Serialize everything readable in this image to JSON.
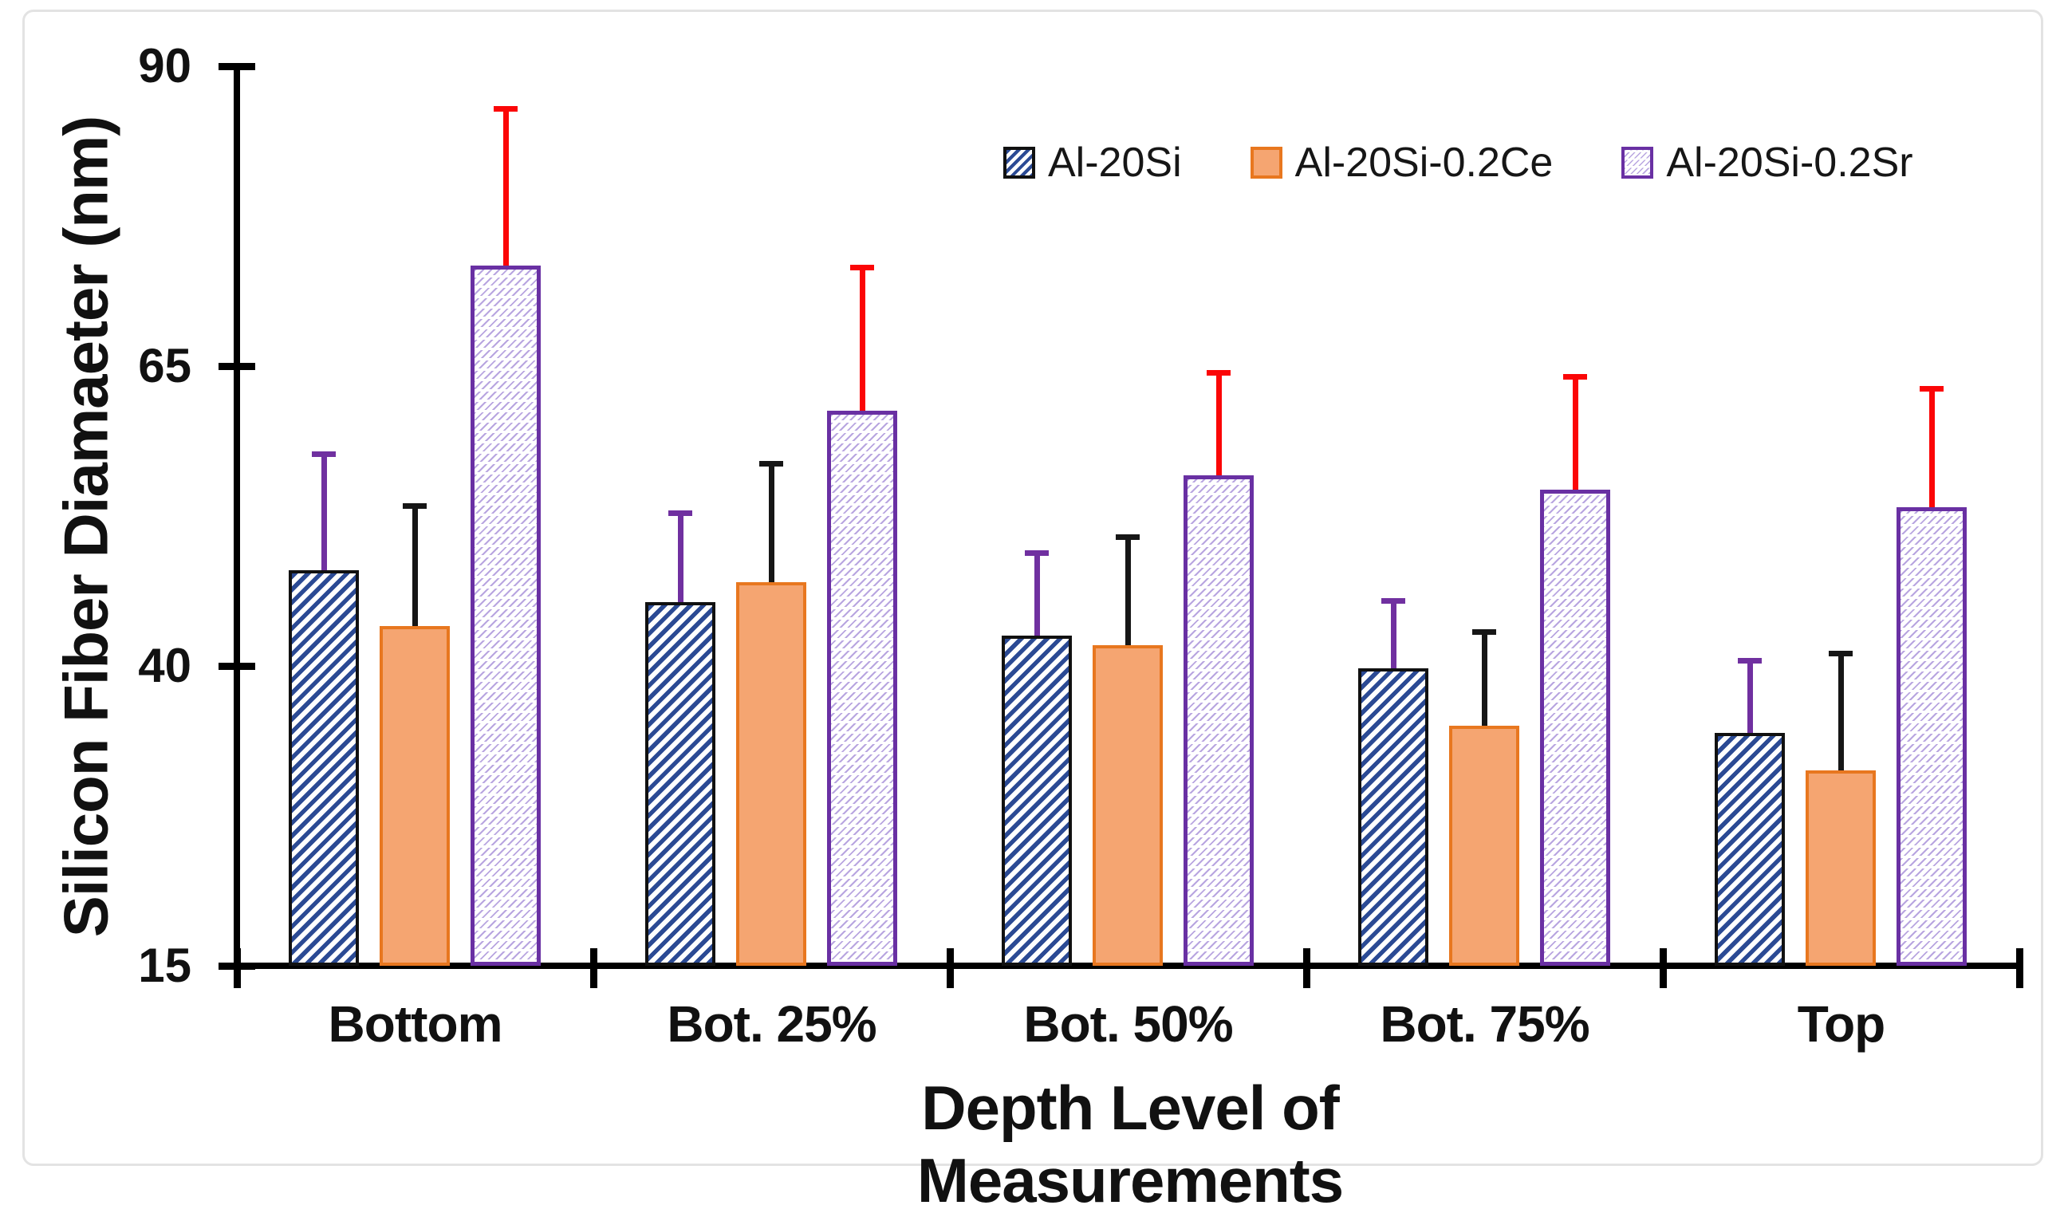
{
  "chart_data": {
    "type": "bar",
    "title": "",
    "xlabel": "Depth Level of Measurements",
    "ylabel": "Silicon Fiber Diamaeter (nm)",
    "categories": [
      "Bottom",
      "Bot. 25%",
      "Bot. 50%",
      "Bot. 75%",
      "Top"
    ],
    "yticks": [
      90,
      65,
      40,
      15
    ],
    "ylim": [
      15,
      90
    ],
    "grid": false,
    "legend_position": "top",
    "series": [
      {
        "name": "Al-20Si",
        "values": [
          48.0,
          45.3,
          42.5,
          39.8,
          34.4
        ],
        "errors_plus": [
          9.8,
          7.6,
          7.1,
          5.8,
          6.2
        ],
        "style": "diagonal-hatch",
        "hatch_color": "#2b4a94",
        "border_color": "#111111",
        "error_color": "#7030A0"
      },
      {
        "name": "Al-20Si-0.2Ce",
        "values": [
          43.3,
          47.0,
          41.7,
          35.0,
          31.3
        ],
        "errors_plus": [
          10.2,
          10.0,
          9.2,
          8.0,
          9.9
        ],
        "style": "solid",
        "fill_color": "#F5A571",
        "border_color": "#E8771F",
        "error_color": "#161616"
      },
      {
        "name": "Al-20Si-0.2Sr",
        "values": [
          73.4,
          61.3,
          55.9,
          54.7,
          53.2
        ],
        "errors_plus": [
          13.2,
          12.1,
          8.7,
          9.6,
          10.1
        ],
        "style": "zigzag-hatch",
        "hatch_color": "rgba(140,110,205,0.62)",
        "border_color": "#6930A3",
        "error_color": "#FB0607"
      }
    ],
    "colors": {
      "axis": "#000000",
      "text": "#111111",
      "frame": "#e3e3e3"
    }
  }
}
